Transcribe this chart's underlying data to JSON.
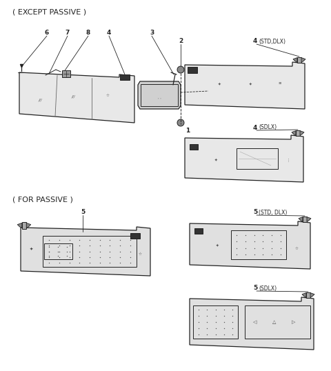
{
  "bg_color": "#ffffff",
  "line_color": "#222222",
  "fig_width": 4.8,
  "fig_height": 5.38,
  "dpi": 100,
  "labels": {
    "except_passive": "( EXCEPT PASSIVE )",
    "for_passive": "( FOR PASSIVE )",
    "label_4std": "4(STD,DLX)",
    "label_4sdlx": "4(SDLX)",
    "label_5std": "5(STD, DLX)",
    "label_5sdlx": "5(SDLX)"
  },
  "font_title": 8.0,
  "font_num": 6.5,
  "font_label": 5.5
}
